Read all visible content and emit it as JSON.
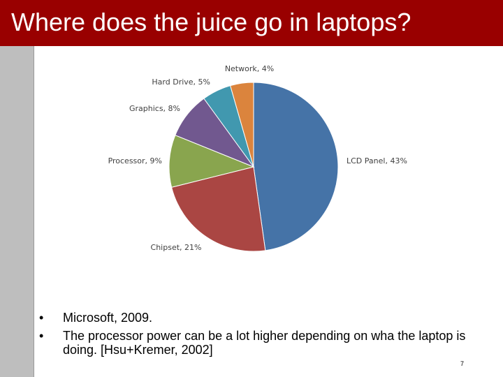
{
  "slide": {
    "title": "Where does the juice go in laptops?",
    "bullet_glyph": "•",
    "bullets": [
      "Microsoft, 2009.",
      "The processor power can be a lot higher depending on wha the laptop is doing. [Hsu+Kremer, 2002]"
    ],
    "slide_number": "7"
  },
  "colors": {
    "title_bar": "#990000",
    "left_bar": "#bebebe"
  },
  "chart_data": {
    "type": "pie",
    "title": "",
    "start_angle_deg": 0,
    "direction": "clockwise",
    "slices": [
      {
        "label": "LCD Panel, 43%",
        "category": "LCD Panel",
        "value": 43,
        "color": "#4573a7"
      },
      {
        "label": "Chipset, 21%",
        "category": "Chipset",
        "value": 21,
        "color": "#aa4643"
      },
      {
        "label": "Processor, 9%",
        "category": "Processor",
        "value": 9,
        "color": "#89a54e"
      },
      {
        "label": "Graphics, 8%",
        "category": "Graphics",
        "value": 8,
        "color": "#71588f"
      },
      {
        "label": "Hard Drive, 5%",
        "category": "Hard Drive",
        "value": 5,
        "color": "#4198af"
      },
      {
        "label": "Network, 4%",
        "category": "Network",
        "value": 4,
        "color": "#db843d"
      }
    ]
  }
}
